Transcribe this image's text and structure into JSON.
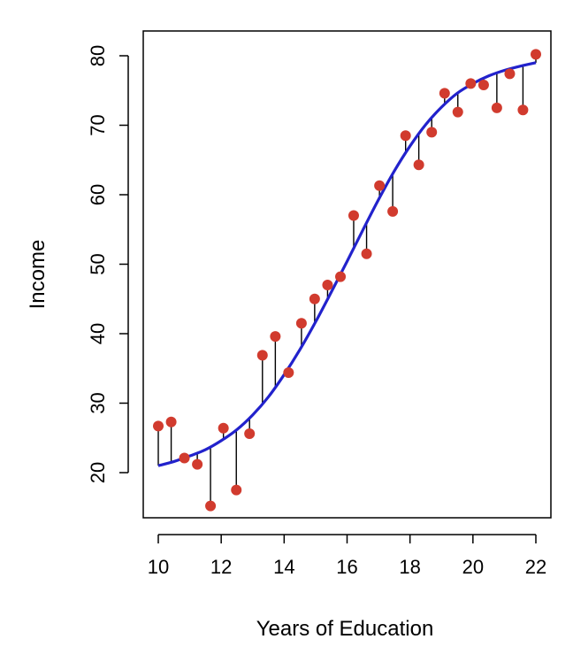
{
  "chart_data": {
    "type": "scatter",
    "title": "",
    "xlabel": "Years of Education",
    "ylabel": "Income",
    "xlim": [
      10,
      22
    ],
    "ylim": [
      13.5,
      83.5
    ],
    "xticks": [
      10,
      12,
      14,
      16,
      18,
      20,
      22
    ],
    "yticks": [
      20,
      30,
      40,
      50,
      60,
      70,
      80
    ],
    "xtick_labels": [
      "10",
      "12",
      "14",
      "16",
      "18",
      "20",
      "22"
    ],
    "ytick_labels": [
      "20",
      "30",
      "40",
      "50",
      "60",
      "70",
      "80"
    ],
    "grid": false,
    "point_color": "#d13b2e",
    "curve_color": "#2222cc",
    "residual_color": "#000000",
    "points": [
      {
        "x": 10.0,
        "y": 26.7
      },
      {
        "x": 10.41,
        "y": 27.3
      },
      {
        "x": 10.83,
        "y": 22.1
      },
      {
        "x": 11.24,
        "y": 21.2
      },
      {
        "x": 11.66,
        "y": 15.2
      },
      {
        "x": 12.07,
        "y": 26.4
      },
      {
        "x": 12.48,
        "y": 17.5
      },
      {
        "x": 12.9,
        "y": 25.6
      },
      {
        "x": 13.31,
        "y": 36.9
      },
      {
        "x": 13.72,
        "y": 39.6
      },
      {
        "x": 14.14,
        "y": 34.4
      },
      {
        "x": 14.55,
        "y": 41.5
      },
      {
        "x": 14.97,
        "y": 45.0
      },
      {
        "x": 15.38,
        "y": 47.0
      },
      {
        "x": 15.79,
        "y": 48.2
      },
      {
        "x": 16.21,
        "y": 57.0
      },
      {
        "x": 16.62,
        "y": 51.5
      },
      {
        "x": 17.03,
        "y": 61.3
      },
      {
        "x": 17.45,
        "y": 57.6
      },
      {
        "x": 17.86,
        "y": 68.5
      },
      {
        "x": 18.28,
        "y": 64.3
      },
      {
        "x": 18.69,
        "y": 69.0
      },
      {
        "x": 19.1,
        "y": 74.6
      },
      {
        "x": 19.52,
        "y": 71.9
      },
      {
        "x": 19.93,
        "y": 76.0
      },
      {
        "x": 20.34,
        "y": 75.8
      },
      {
        "x": 20.76,
        "y": 72.5
      },
      {
        "x": 21.17,
        "y": 77.4
      },
      {
        "x": 21.59,
        "y": 72.2
      },
      {
        "x": 22.0,
        "y": 80.2
      }
    ],
    "fitted_curve": {
      "x": [
        10.0,
        10.5,
        11.0,
        11.5,
        12.0,
        12.5,
        13.0,
        13.5,
        14.0,
        14.5,
        15.0,
        15.5,
        16.0,
        16.5,
        17.0,
        17.5,
        18.0,
        18.5,
        19.0,
        19.5,
        20.0,
        20.5,
        21.0,
        21.5,
        22.0
      ],
      "y": [
        21.0,
        21.6,
        22.4,
        23.3,
        24.6,
        26.2,
        28.3,
        30.9,
        34.1,
        37.7,
        41.7,
        46.0,
        50.4,
        54.9,
        59.3,
        63.4,
        67.0,
        70.1,
        72.6,
        74.6,
        76.0,
        77.1,
        77.9,
        78.5,
        79.0
      ]
    }
  }
}
